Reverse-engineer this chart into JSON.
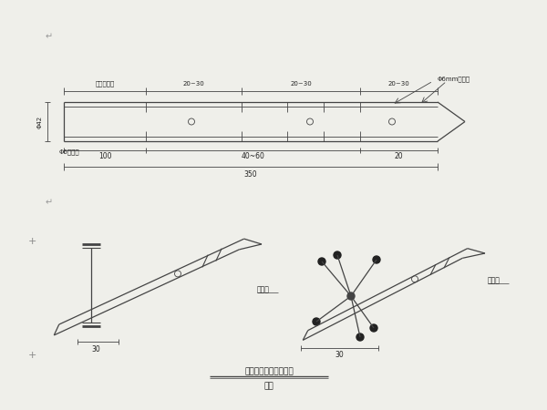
{
  "bg_color": "#efefea",
  "line_color": "#444444",
  "text_color": "#222222",
  "title1": "小号管架设位置示意图",
  "title2": "示意",
  "label_steel_pipe1": "钐弧管",
  "label_steel_pipe2": "钐弧管",
  "label_phi6": "Φ6加劑箋",
  "label_phi42": "Φ42",
  "label_hole": "Φ6mm注浆孔",
  "label_stop": "预留止浆段",
  "dim_100": "100",
  "dim_4060": "40~60",
  "dim_20": "20",
  "dim_350": "350",
  "dim_2030_1": "20~30",
  "dim_2030_2": "20~30",
  "dim_2030_3": "20~30",
  "dim_30_left": "30",
  "dim_30_right": "30"
}
